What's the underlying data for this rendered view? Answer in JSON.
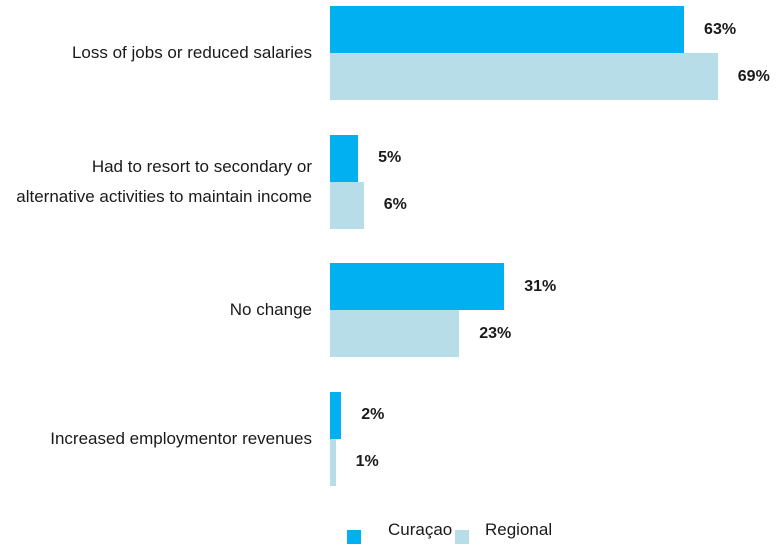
{
  "chart_data": {
    "type": "bar",
    "orientation": "horizontal",
    "categories": [
      "Loss of jobs or reduced salaries",
      "Had to resort to secondary or alternative activities to maintain income",
      "No change",
      "Increased employmentor revenues"
    ],
    "series": [
      {
        "name": "Curaçao",
        "color": "#00b0f0",
        "values": [
          63,
          5,
          31,
          2
        ],
        "value_labels": [
          "63%",
          "5%",
          "31%",
          "2%"
        ]
      },
      {
        "name": "Regional",
        "color": "#b7dde8",
        "values": [
          69,
          6,
          23,
          1
        ],
        "value_labels": [
          "69%",
          "6%",
          "23%",
          "1%"
        ]
      }
    ],
    "legend": "bottom"
  }
}
